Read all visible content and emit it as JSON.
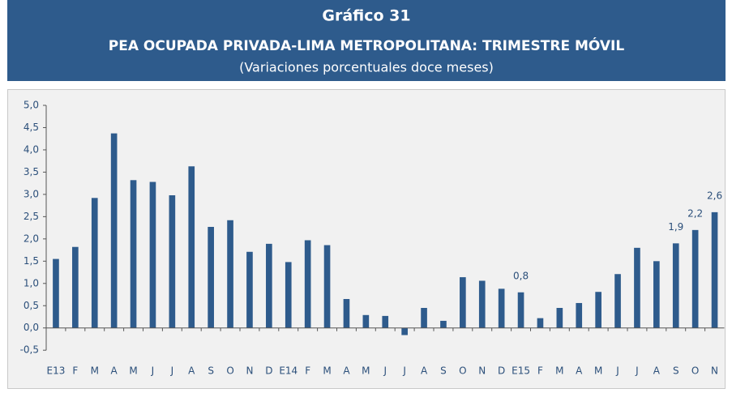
{
  "chart_data": {
    "type": "bar",
    "title": "Gráfico 31",
    "subtitle": "PEA OCUPADA PRIVADA-LIMA METROPOLITANA: TRIMESTRE MÓVIL",
    "note": "(Variaciones porcentuales doce meses)",
    "categories": [
      "E13",
      "F",
      "M",
      "A",
      "M",
      "J",
      "J",
      "A",
      "S",
      "O",
      "N",
      "D",
      "E14",
      "F",
      "M",
      "A",
      "M",
      "J",
      "J",
      "A",
      "S",
      "O",
      "N",
      "D",
      "E15",
      "F",
      "M",
      "A",
      "M",
      "J",
      "J",
      "A",
      "S",
      "O",
      "N"
    ],
    "values": [
      1.55,
      1.82,
      2.92,
      4.37,
      3.32,
      3.28,
      2.98,
      3.63,
      2.27,
      2.42,
      1.71,
      1.89,
      1.48,
      1.97,
      1.86,
      0.65,
      0.29,
      0.27,
      -0.16,
      0.45,
      0.16,
      1.14,
      1.06,
      0.88,
      0.8,
      0.22,
      0.45,
      0.56,
      0.81,
      1.21,
      1.8,
      1.5,
      1.9,
      2.2,
      2.6
    ],
    "value_labels": [
      null,
      null,
      null,
      null,
      null,
      null,
      null,
      null,
      null,
      null,
      null,
      null,
      null,
      null,
      null,
      null,
      null,
      null,
      null,
      null,
      null,
      null,
      null,
      null,
      "0,8",
      null,
      null,
      null,
      null,
      null,
      null,
      null,
      "1,9",
      "2,2",
      "2,6"
    ],
    "color": "#2e5b8c",
    "ylim": [
      -0.5,
      5.0
    ],
    "yticks": [
      {
        "value": -0.5,
        "label": "-0,5"
      },
      {
        "value": 0,
        "label": "0,0"
      },
      {
        "value": 0.5,
        "label": "0,5"
      },
      {
        "value": 1,
        "label": "1,0"
      },
      {
        "value": 1.5,
        "label": "1,5"
      },
      {
        "value": 2,
        "label": "2,0"
      },
      {
        "value": 2.5,
        "label": "2,5"
      },
      {
        "value": 3,
        "label": "3,0"
      },
      {
        "value": 3.5,
        "label": "3,5"
      },
      {
        "value": 4,
        "label": "4,0"
      },
      {
        "value": 4.5,
        "label": "4,5"
      },
      {
        "value": 5,
        "label": "5,0"
      }
    ],
    "grid": false
  }
}
